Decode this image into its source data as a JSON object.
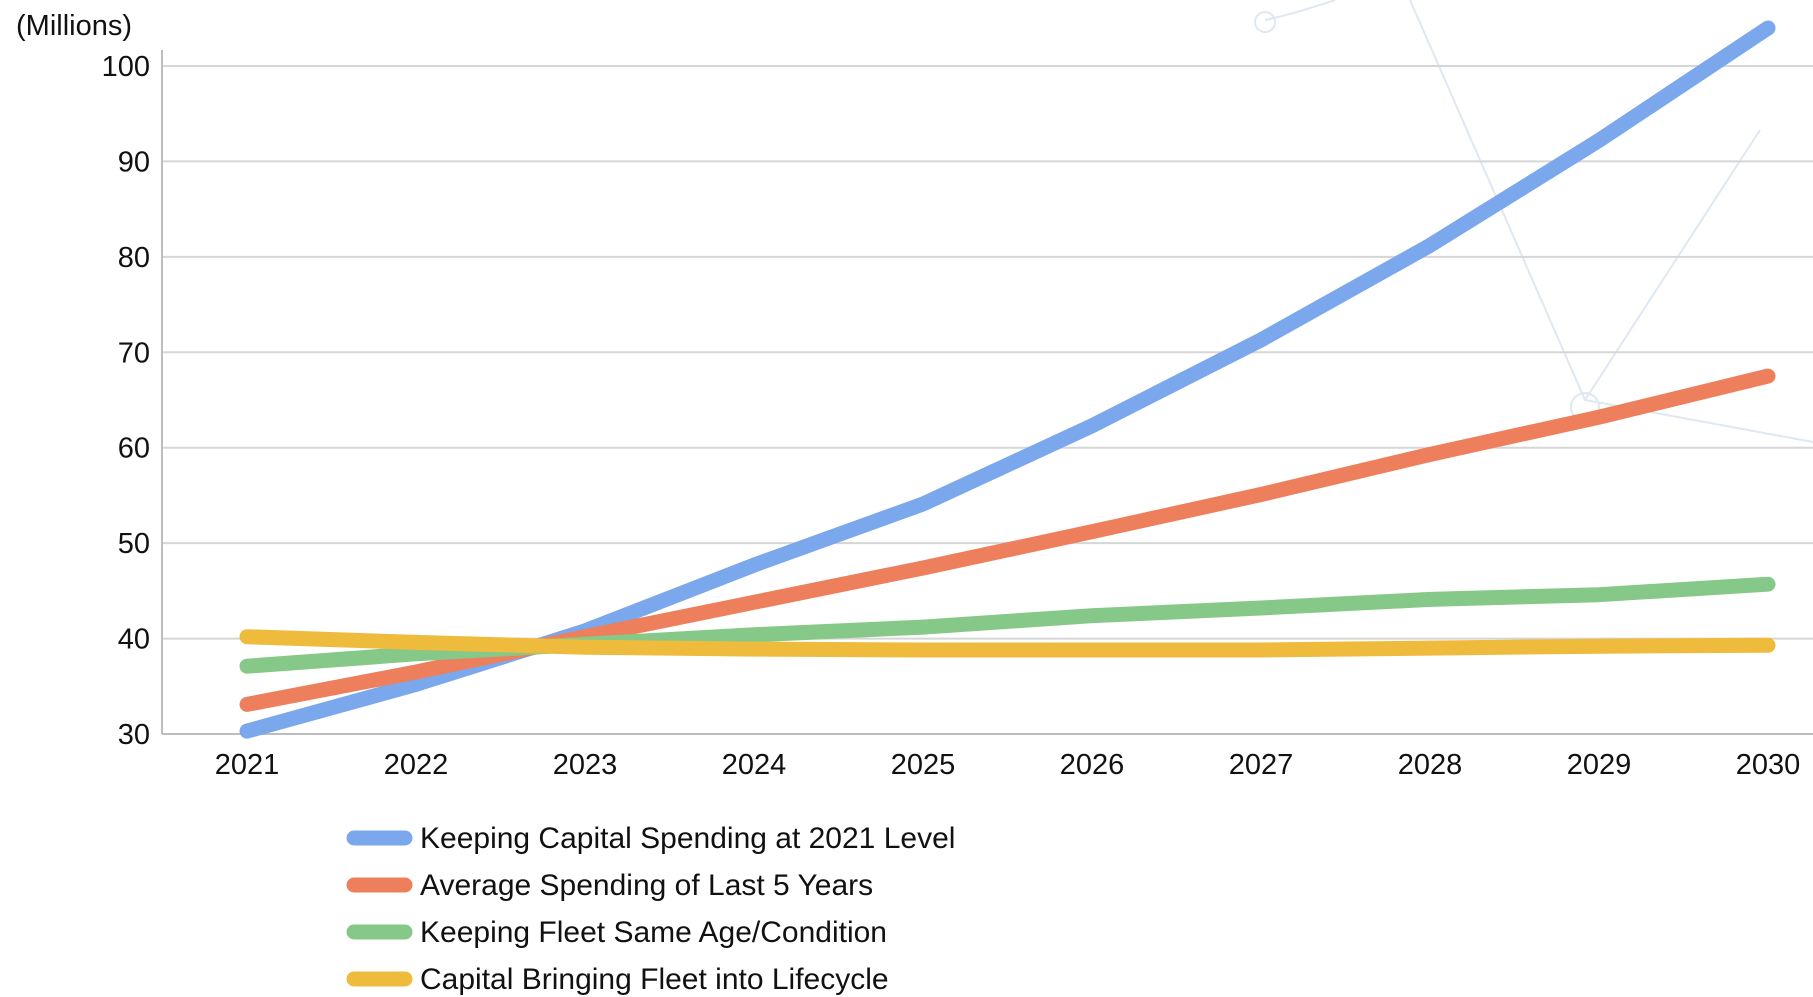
{
  "chart_data": {
    "type": "line",
    "unit_label": "(Millions)",
    "title": "",
    "xlabel": "",
    "ylabel": "(Millions)",
    "categories": [
      "2021",
      "2022",
      "2023",
      "2024",
      "2025",
      "2026",
      "2027",
      "2028",
      "2029",
      "2030"
    ],
    "yticks": [
      30,
      40,
      50,
      60,
      70,
      80,
      90,
      100
    ],
    "ylim": [
      30,
      100
    ],
    "grid": true,
    "legend_position": "bottom-left",
    "series": [
      {
        "name": "Keeping Capital Spending at 2021 Level",
        "color": "#7ba7ec",
        "values": [
          30.3,
          35.2,
          40.8,
          47.7,
          54.1,
          62.3,
          71.3,
          81.2,
          92.2,
          104.3
        ]
      },
      {
        "name": "Average Spending of Last 5 Years",
        "color": "#ee7f5c",
        "values": [
          33.1,
          36.5,
          40.2,
          43.8,
          47.4,
          51.2,
          55.1,
          59.3,
          63.2,
          67.5
        ]
      },
      {
        "name": "Keeping Fleet Same Age/Condition",
        "color": "#86c887",
        "values": [
          37.1,
          38.4,
          39.4,
          40.4,
          41.2,
          42.4,
          43.2,
          44.1,
          44.6,
          45.7
        ]
      },
      {
        "name": "Capital Bringing Fleet into Lifecycle",
        "color": "#eebb3d",
        "values": [
          40.2,
          39.6,
          39.1,
          38.9,
          38.8,
          38.8,
          38.8,
          39.0,
          39.2,
          39.3
        ]
      }
    ]
  }
}
